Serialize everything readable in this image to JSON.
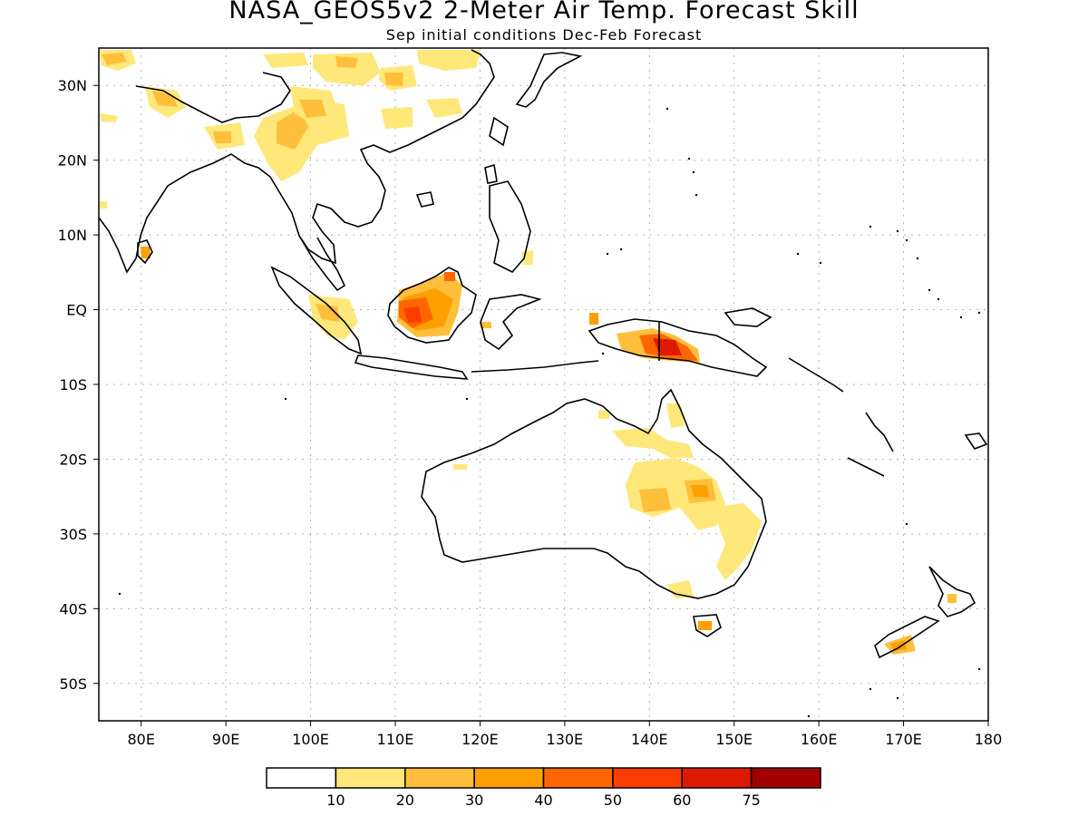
{
  "header": {
    "title": "NASA_GEOS5v2 2-Meter Air Temp. Forecast Skill",
    "subtitle": "Sep initial conditions  Dec-Feb Forecast"
  },
  "map": {
    "lon_range": [
      75,
      180
    ],
    "lat_range": [
      -55,
      35
    ],
    "lat_ticks": [
      {
        "lat": 30,
        "label": "30N"
      },
      {
        "lat": 20,
        "label": "20N"
      },
      {
        "lat": 10,
        "label": "10N"
      },
      {
        "lat": 0,
        "label": "EQ"
      },
      {
        "lat": -10,
        "label": "10S"
      },
      {
        "lat": -20,
        "label": "20S"
      },
      {
        "lat": -30,
        "label": "30S"
      },
      {
        "lat": -40,
        "label": "40S"
      },
      {
        "lat": -50,
        "label": "50S"
      }
    ],
    "lon_ticks": [
      {
        "lon": 80,
        "label": "80E"
      },
      {
        "lon": 90,
        "label": "90E"
      },
      {
        "lon": 100,
        "label": "100E"
      },
      {
        "lon": 110,
        "label": "110E"
      },
      {
        "lon": 120,
        "label": "120E"
      },
      {
        "lon": 130,
        "label": "130E"
      },
      {
        "lon": 140,
        "label": "140E"
      },
      {
        "lon": 150,
        "label": "150E"
      },
      {
        "lon": 160,
        "label": "160E"
      },
      {
        "lon": 170,
        "label": "170E"
      },
      {
        "lon": 180,
        "label": "180"
      }
    ],
    "grid": true
  },
  "legend": {
    "colors": [
      "#ffffff",
      "#ffe77a",
      "#ffbf3a",
      "#ff9f00",
      "#ff6600",
      "#fa3c00",
      "#dd1a00",
      "#a20000"
    ],
    "labels": [
      "10",
      "20",
      "30",
      "40",
      "50",
      "60",
      "75"
    ]
  },
  "colors": {
    "land_outline": "#000000",
    "grid": "#b4b4b4",
    "skill_low": "#ffe77a",
    "skill_mid": "#ffbf3a",
    "skill_high": "#ff9f00",
    "skill_very_high": "#ff6600",
    "skill_max": "#fa3c00",
    "skill_extreme": "#dd1a00"
  }
}
